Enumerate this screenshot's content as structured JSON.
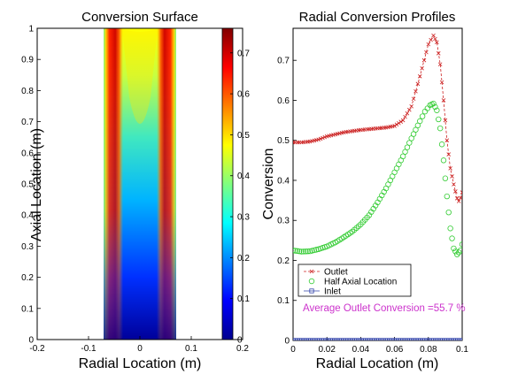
{
  "chart_data": [
    {
      "type": "heatmap",
      "title": "Conversion Surface",
      "xlabel": "Radial Location (m)",
      "ylabel": "Axial Location (m)",
      "xlim": [
        -0.2,
        0.2
      ],
      "ylim": [
        0,
        1
      ],
      "x_ticks": [
        "-0.2",
        "-0.1",
        "0",
        "0.1",
        "0.2"
      ],
      "y_ticks": [
        "0",
        "0.1",
        "0.2",
        "0.3",
        "0.4",
        "0.5",
        "0.6",
        "0.7",
        "0.8",
        "0.9",
        "1"
      ],
      "data_extent_x": [
        -0.1,
        0.1
      ],
      "colormap": "jet",
      "color_range": [
        0,
        0.76
      ],
      "colorbar_ticks": [
        "0",
        "0.1",
        "0.2",
        "0.3",
        "0.4",
        "0.5",
        "0.6",
        "0.7"
      ],
      "grid": false
    },
    {
      "type": "line",
      "title": "Radial Conversion Profiles",
      "xlabel": "Radial Location (m)",
      "ylabel": "Conversion",
      "xlim": [
        0,
        0.1
      ],
      "ylim": [
        0,
        0.78
      ],
      "x_ticks": [
        "0",
        "0.02",
        "0.04",
        "0.06",
        "0.08",
        "0.1"
      ],
      "y_ticks": [
        "0",
        "0.1",
        "0.2",
        "0.3",
        "0.4",
        "0.5",
        "0.6",
        "0.7"
      ],
      "legend_position": "bottom-left",
      "grid": false,
      "annotation": "Average Outlet Conversion =55.7 %",
      "annotation_color": "#cc33cc",
      "series": [
        {
          "name": "Outlet",
          "marker": "x",
          "color": "#cc2222",
          "points": [
            [
              0,
              0.495
            ],
            [
              0.005,
              0.495
            ],
            [
              0.01,
              0.497
            ],
            [
              0.015,
              0.502
            ],
            [
              0.02,
              0.51
            ],
            [
              0.025,
              0.515
            ],
            [
              0.03,
              0.52
            ],
            [
              0.035,
              0.523
            ],
            [
              0.04,
              0.526
            ],
            [
              0.045,
              0.528
            ],
            [
              0.05,
              0.53
            ],
            [
              0.055,
              0.532
            ],
            [
              0.06,
              0.536
            ],
            [
              0.065,
              0.55
            ],
            [
              0.07,
              0.585
            ],
            [
              0.075,
              0.66
            ],
            [
              0.08,
              0.74
            ],
            [
              0.083,
              0.762
            ],
            [
              0.085,
              0.745
            ],
            [
              0.087,
              0.69
            ],
            [
              0.089,
              0.6
            ],
            [
              0.091,
              0.5
            ],
            [
              0.093,
              0.43
            ],
            [
              0.095,
              0.39
            ],
            [
              0.097,
              0.355
            ],
            [
              0.098,
              0.348
            ],
            [
              0.099,
              0.356
            ],
            [
              0.1,
              0.37
            ]
          ]
        },
        {
          "name": "Half Axial Location",
          "marker": "o",
          "color": "#33cc33",
          "points": [
            [
              0,
              0.225
            ],
            [
              0.005,
              0.222
            ],
            [
              0.01,
              0.223
            ],
            [
              0.015,
              0.228
            ],
            [
              0.02,
              0.235
            ],
            [
              0.025,
              0.245
            ],
            [
              0.03,
              0.258
            ],
            [
              0.035,
              0.272
            ],
            [
              0.04,
              0.29
            ],
            [
              0.045,
              0.313
            ],
            [
              0.05,
              0.345
            ],
            [
              0.055,
              0.38
            ],
            [
              0.06,
              0.42
            ],
            [
              0.065,
              0.46
            ],
            [
              0.07,
              0.505
            ],
            [
              0.075,
              0.548
            ],
            [
              0.078,
              0.572
            ],
            [
              0.081,
              0.588
            ],
            [
              0.083,
              0.592
            ],
            [
              0.085,
              0.575
            ],
            [
              0.087,
              0.53
            ],
            [
              0.089,
              0.45
            ],
            [
              0.091,
              0.36
            ],
            [
              0.093,
              0.28
            ],
            [
              0.095,
              0.23
            ],
            [
              0.097,
              0.215
            ],
            [
              0.099,
              0.225
            ],
            [
              0.1,
              0.24
            ]
          ]
        },
        {
          "name": "Inlet",
          "marker": "s",
          "color": "#3344aa",
          "points": [
            [
              0,
              0
            ],
            [
              0.1,
              0
            ]
          ]
        }
      ]
    }
  ]
}
